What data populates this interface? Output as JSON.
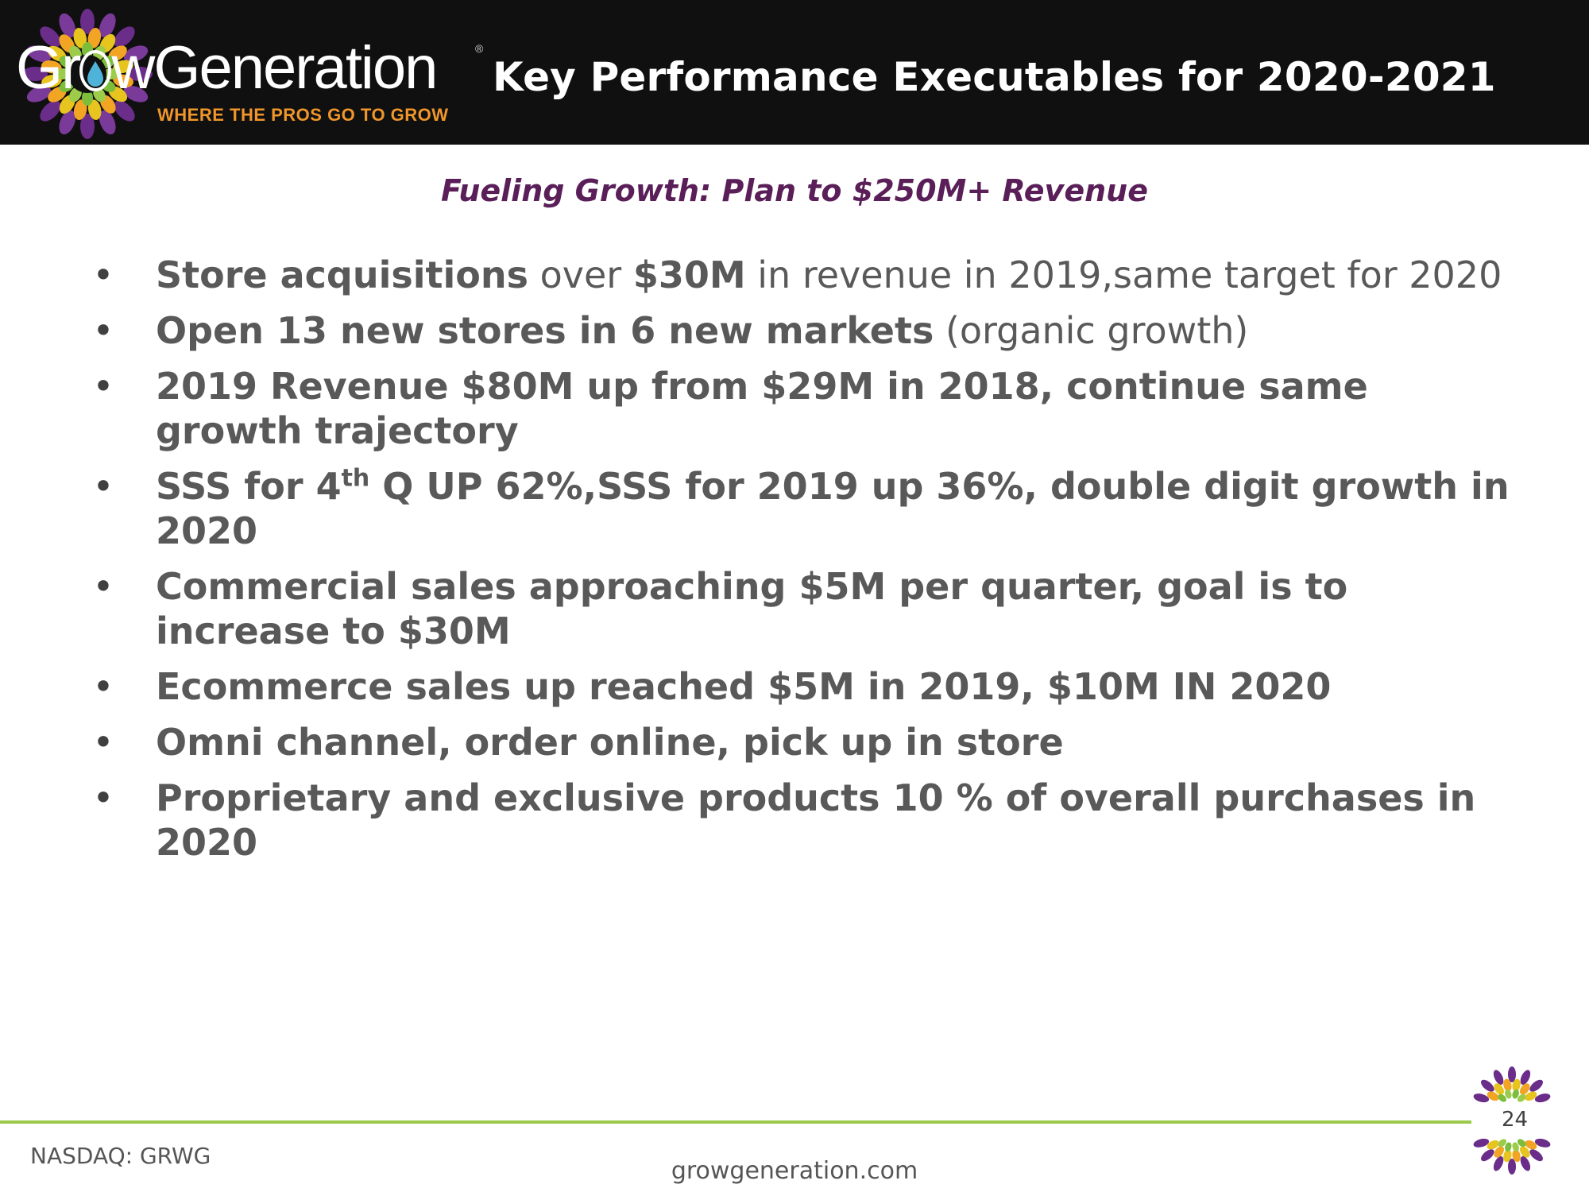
{
  "header": {
    "logo": {
      "name_part1": "Gr",
      "name_part2": "wGeneration",
      "registered": "®",
      "tagline": "WHERE THE PROS GO TO GROW"
    },
    "title": "Key Performance Executables for 2020-2021"
  },
  "subtitle": "Fueling Growth: Plan to $250M+ Revenue",
  "bullets": [
    {
      "parts": [
        {
          "text": "Store acquisitions",
          "bold": true
        },
        {
          "text": " over ",
          "bold": false
        },
        {
          "text": "$30M",
          "bold": true
        },
        {
          "text": " in revenue in 2019,same target for 2020",
          "bold": false
        }
      ]
    },
    {
      "parts": [
        {
          "text": "Open 13 new stores in 6 new markets",
          "bold": true
        },
        {
          "text": " (organic growth)",
          "bold": false
        }
      ]
    },
    {
      "parts": [
        {
          "text": "2019 Revenue $80M up from $29M in 2018, continue same growth trajectory",
          "bold": true
        }
      ]
    },
    {
      "parts": [
        {
          "text": "SSS for 4",
          "bold": true
        },
        {
          "text": "th",
          "bold": true,
          "sup": true
        },
        {
          "text": " Q UP 62%,SSS for 2019 up 36%, double digit growth in 2020",
          "bold": true
        }
      ]
    },
    {
      "parts": [
        {
          "text": "Commercial sales approaching $5M per quarter, goal is to increase to $30M",
          "bold": true
        }
      ]
    },
    {
      "parts": [
        {
          "text": "Ecommerce sales up reached $5M in 2019, $10M IN 2020",
          "bold": true
        }
      ]
    },
    {
      "parts": [
        {
          "text": "Omni channel, order online, pick up in store",
          "bold": true
        }
      ]
    },
    {
      "parts": [
        {
          "text": "Proprietary and exclusive products 10 % of overall purchases in 2020",
          "bold": true
        }
      ]
    }
  ],
  "footer": {
    "ticker": "NASDAQ: GRWG",
    "website": "growgeneration.com",
    "page_number": "24"
  },
  "colors": {
    "header_bg": "#101010",
    "subtitle": "#5a1f58",
    "body_text": "#595959",
    "tagline": "#f0962a",
    "footer_rule": "#9bc94a",
    "water_drop": "#4fb3d9"
  }
}
